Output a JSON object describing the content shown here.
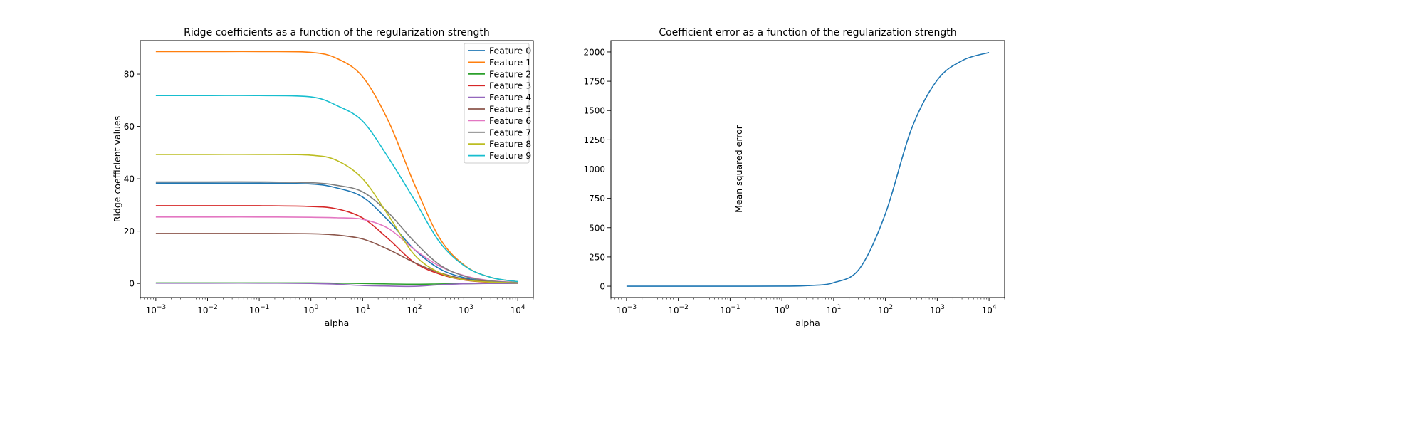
{
  "chart_data": [
    {
      "type": "line",
      "title": "Ridge coefficients as a function of the regularization strength",
      "xlabel": "alpha",
      "ylabel": "Ridge coefficient values",
      "xscale": "log",
      "xlim": [
        0.0005,
        20000
      ],
      "ylim": [
        -5.4,
        92.8
      ],
      "xticks": [
        0.001,
        0.01,
        0.1,
        1,
        10,
        100,
        1000,
        10000
      ],
      "xtick_labels": [
        [
          "10",
          "−3"
        ],
        [
          "10",
          "−2"
        ],
        [
          "10",
          "−1"
        ],
        [
          "10",
          "0"
        ],
        [
          "10",
          "1"
        ],
        [
          "10",
          "2"
        ],
        [
          "10",
          "3"
        ],
        [
          "10",
          "4"
        ]
      ],
      "yticks": [
        0,
        20,
        40,
        60,
        80
      ],
      "ytick_labels": [
        "0",
        "20",
        "40",
        "60",
        "80"
      ],
      "grid": false,
      "legend": "top-right",
      "x": [
        0.001,
        0.01,
        0.1,
        1,
        3.16,
        10,
        31.6,
        100,
        316,
        1000,
        3162,
        10000
      ],
      "series": [
        {
          "name": "Feature 0",
          "color": "#1f77b4",
          "values": [
            38.3,
            38.3,
            38.3,
            38.0,
            36.5,
            33,
            24,
            13,
            5.5,
            2,
            0.7,
            0.2
          ]
        },
        {
          "name": "Feature 1",
          "color": "#ff7f0e",
          "values": [
            88.6,
            88.6,
            88.6,
            88.3,
            86,
            79,
            62,
            38,
            17,
            6.5,
            2.2,
            0.7
          ]
        },
        {
          "name": "Feature 2",
          "color": "#2ca02c",
          "values": [
            0.2,
            0.2,
            0.2,
            0.2,
            0.1,
            0,
            -0.2,
            -0.3,
            -0.2,
            -0.1,
            0,
            0
          ]
        },
        {
          "name": "Feature 3",
          "color": "#d62728",
          "values": [
            29.7,
            29.7,
            29.7,
            29.4,
            28.5,
            25,
            17,
            8,
            3.5,
            1.2,
            0.4,
            0.1
          ]
        },
        {
          "name": "Feature 4",
          "color": "#9467bd",
          "values": [
            0.1,
            0.1,
            0.1,
            0,
            -0.3,
            -0.8,
            -1.0,
            -1.1,
            -0.5,
            -0.1,
            0,
            0
          ]
        },
        {
          "name": "Feature 5",
          "color": "#8c564b",
          "values": [
            19.1,
            19.1,
            19.1,
            19.0,
            18.5,
            17,
            13,
            8,
            4,
            1.6,
            0.6,
            0.2
          ]
        },
        {
          "name": "Feature 6",
          "color": "#e377c2",
          "values": [
            25.4,
            25.4,
            25.4,
            25.3,
            25.1,
            24.5,
            21,
            13,
            6.5,
            2.8,
            1,
            0.35
          ]
        },
        {
          "name": "Feature 7",
          "color": "#7f7f7f",
          "values": [
            38.8,
            38.8,
            38.8,
            38.5,
            37.5,
            35,
            27,
            16,
            7,
            2.6,
            0.9,
            0.3
          ]
        },
        {
          "name": "Feature 8",
          "color": "#bcbd22",
          "values": [
            49.3,
            49.3,
            49.3,
            49.0,
            47,
            40,
            26,
            11,
            4,
            1.3,
            0.5,
            0.15
          ]
        },
        {
          "name": "Feature 9",
          "color": "#17becf",
          "values": [
            71.8,
            71.8,
            71.8,
            71.3,
            68,
            62,
            48,
            32,
            15.5,
            6.3,
            2.2,
            0.7
          ]
        }
      ]
    },
    {
      "type": "line",
      "title": "Coefficient error as a function of the regularization strength",
      "xlabel": "alpha",
      "ylabel": "Mean squared error",
      "xscale": "log",
      "xlim": [
        0.0005,
        20000
      ],
      "ylim": [
        -97,
        2097
      ],
      "xticks": [
        0.001,
        0.01,
        0.1,
        1,
        10,
        100,
        1000,
        10000
      ],
      "xtick_labels": [
        [
          "10",
          "−3"
        ],
        [
          "10",
          "−2"
        ],
        [
          "10",
          "−1"
        ],
        [
          "10",
          "0"
        ],
        [
          "10",
          "1"
        ],
        [
          "10",
          "2"
        ],
        [
          "10",
          "3"
        ],
        [
          "10",
          "4"
        ]
      ],
      "yticks": [
        0,
        250,
        500,
        750,
        1000,
        1250,
        1500,
        1750,
        2000
      ],
      "ytick_labels": [
        "0",
        "250",
        "500",
        "750",
        "1000",
        "1250",
        "1500",
        "1750",
        "2000"
      ],
      "grid": false,
      "x": [
        0.001,
        0.01,
        0.1,
        1,
        3.16,
        10,
        31.6,
        100,
        316,
        1000,
        3162,
        10000
      ],
      "series": [
        {
          "color": "#1f77b4",
          "values": [
            0,
            0,
            0,
            0.5,
            5,
            30,
            150,
            620,
            1340,
            1760,
            1930,
            1995
          ]
        }
      ]
    }
  ]
}
